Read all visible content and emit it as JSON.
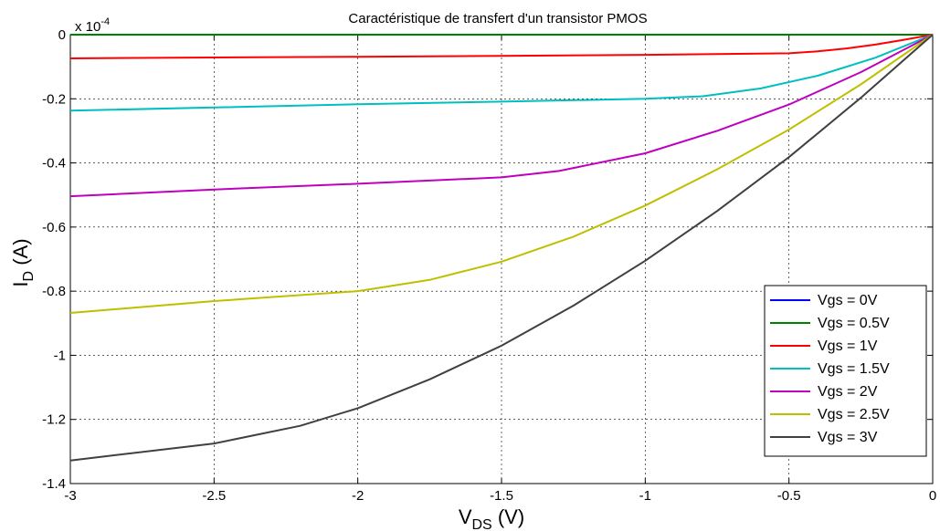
{
  "chart_data": {
    "type": "line",
    "title": "Caractéristique de transfert d'un transistor PMOS",
    "xlabel": {
      "main": "V",
      "sub": "DS",
      "unit": " (V)"
    },
    "ylabel": {
      "main": "I",
      "sub": "D",
      "unit": " (A)"
    },
    "y_multiplier": {
      "base": "x 10",
      "exponent": "-4"
    },
    "xlim": [
      -3,
      0
    ],
    "ylim": [
      -1.4,
      0
    ],
    "x_ticks": [
      -3,
      -2.5,
      -2,
      -1.5,
      -1,
      -0.5,
      0
    ],
    "x_tick_labels": [
      "-3",
      "-2.5",
      "-2",
      "-1.5",
      "-1",
      "-0.5",
      "0"
    ],
    "y_ticks": [
      0,
      -0.2,
      -0.4,
      -0.6,
      -0.8,
      -1,
      -1.2,
      -1.4
    ],
    "y_tick_labels": [
      "0",
      "-0.2",
      "-0.4",
      "-0.6",
      "-0.8",
      "-1",
      "-1.2",
      "-1.4"
    ],
    "grid": true,
    "legend_position": "bottom-right",
    "series": [
      {
        "name": "Vgs = 0V",
        "color": "#0000ff",
        "points": [
          [
            -3,
            0
          ],
          [
            0,
            0
          ]
        ]
      },
      {
        "name": "Vgs = 0.5V",
        "color": "#008000",
        "points": [
          [
            -3,
            0
          ],
          [
            0,
            0
          ]
        ]
      },
      {
        "name": "Vgs = 1V",
        "color": "#ff0000",
        "points": [
          [
            -3,
            -0.074
          ],
          [
            -2.5,
            -0.071
          ],
          [
            -2,
            -0.069
          ],
          [
            -1.5,
            -0.066
          ],
          [
            -1,
            -0.063
          ],
          [
            -0.5,
            -0.058
          ],
          [
            -0.4,
            -0.052
          ],
          [
            -0.3,
            -0.043
          ],
          [
            -0.2,
            -0.031
          ],
          [
            -0.1,
            -0.016
          ],
          [
            0,
            0
          ]
        ]
      },
      {
        "name": "Vgs = 1.5V",
        "color": "#00bfbf",
        "points": [
          [
            -3,
            -0.237
          ],
          [
            -2.5,
            -0.227
          ],
          [
            -2,
            -0.217
          ],
          [
            -1.5,
            -0.209
          ],
          [
            -1,
            -0.2
          ],
          [
            -0.8,
            -0.192
          ],
          [
            -0.6,
            -0.168
          ],
          [
            -0.4,
            -0.128
          ],
          [
            -0.2,
            -0.072
          ],
          [
            0,
            0
          ]
        ]
      },
      {
        "name": "Vgs = 2V",
        "color": "#bf00bf",
        "points": [
          [
            -3,
            -0.504
          ],
          [
            -2.5,
            -0.483
          ],
          [
            -2,
            -0.465
          ],
          [
            -1.5,
            -0.445
          ],
          [
            -1.3,
            -0.425
          ],
          [
            -1,
            -0.37
          ],
          [
            -0.75,
            -0.3
          ],
          [
            -0.5,
            -0.218
          ],
          [
            -0.25,
            -0.117
          ],
          [
            0,
            0
          ]
        ]
      },
      {
        "name": "Vgs = 2.5V",
        "color": "#bfbf00",
        "points": [
          [
            -3,
            -0.868
          ],
          [
            -2.5,
            -0.831
          ],
          [
            -2,
            -0.8
          ],
          [
            -1.75,
            -0.765
          ],
          [
            -1.5,
            -0.708
          ],
          [
            -1.25,
            -0.63
          ],
          [
            -1,
            -0.533
          ],
          [
            -0.75,
            -0.42
          ],
          [
            -0.5,
            -0.296
          ],
          [
            -0.25,
            -0.155
          ],
          [
            0,
            0
          ]
        ]
      },
      {
        "name": "Vgs = 3V",
        "color": "#404040",
        "points": [
          [
            -3,
            -1.328
          ],
          [
            -2.5,
            -1.275
          ],
          [
            -2.2,
            -1.22
          ],
          [
            -2,
            -1.165
          ],
          [
            -1.75,
            -1.075
          ],
          [
            -1.5,
            -0.97
          ],
          [
            -1.25,
            -0.845
          ],
          [
            -1,
            -0.705
          ],
          [
            -0.75,
            -0.55
          ],
          [
            -0.5,
            -0.382
          ],
          [
            -0.25,
            -0.197
          ],
          [
            0,
            0
          ]
        ]
      }
    ]
  }
}
